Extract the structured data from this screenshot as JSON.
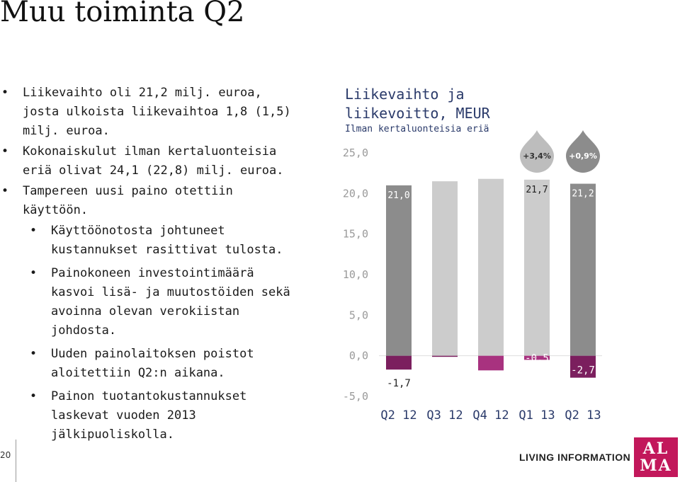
{
  "slide": {
    "title": "Muu toiminta Q2",
    "page_number": "20",
    "tagline": "LIVING INFORMATION",
    "logo_line1": "AL",
    "logo_line2": "MA",
    "logo_color": "#c2185b"
  },
  "bullets": [
    {
      "text": "Liikevaihto oli 21,2 milj. euroa, josta ulkoista liikevaihtoa 1,8 (1,5) milj. euroa.",
      "level": 1
    },
    {
      "text": "Kokonaiskulut ilman kertaluonteisia eriä olivat 24,1 (22,8) milj. euroa.",
      "level": 1
    },
    {
      "text": "Tampereen uusi paino otettiin käyttöön.",
      "level": 1
    },
    {
      "text": "Käyttöönotosta johtuneet kustannukset rasittivat tulosta.",
      "level": 2
    },
    {
      "text": "Painokoneen investointimäärä kasvoi lisä- ja muutostöiden sekä avoinna olevan verokiistan johdosta.",
      "level": 2
    },
    {
      "text": "Uuden painolaitoksen poistot aloitettiin Q2:n aikana.",
      "level": 2
    },
    {
      "text": "Painon tuotantokustannukset laskevat vuoden 2013 jälkipuoliskolla.",
      "level": 2
    }
  ],
  "chart_data": {
    "type": "bar",
    "title": "Liikevaihto ja liikevoitto, MEUR",
    "subtitle": "Ilman kertaluonteisia eriä",
    "categories": [
      "Q2 12",
      "Q3 12",
      "Q4 12",
      "Q1 13",
      "Q2 13"
    ],
    "yticks": [
      "25,0",
      "20,0",
      "15,0",
      "10,0",
      "5,0",
      "0,0",
      "-5,0"
    ],
    "ylim": [
      -5,
      25
    ],
    "series": [
      {
        "values": [
          21.0,
          21.5,
          21.8,
          21.7,
          21.2
        ],
        "labels": [
          "21,0",
          "",
          "",
          "21,7",
          "21,2"
        ],
        "colors": [
          "#8c8c8c",
          "#cccccc",
          "#cccccc",
          "#cccccc",
          "#8c8c8c"
        ]
      },
      {
        "values": [
          -1.7,
          -0.1,
          -1.8,
          -0.5,
          -2.7
        ],
        "labels": [
          "-1,7",
          "",
          "",
          "-0,5",
          "-2,7"
        ],
        "colors": [
          "#7b1f5e",
          "#7b1f5e",
          "#a8327f",
          "#a8327f",
          "#7b1f5e"
        ]
      }
    ],
    "change_badges": [
      {
        "category": "Q1 13",
        "text": "+3,4%",
        "color": "#bdbdbd"
      },
      {
        "category": "Q2 13",
        "text": "+0,9%",
        "color": "#8c8c8c"
      }
    ]
  }
}
